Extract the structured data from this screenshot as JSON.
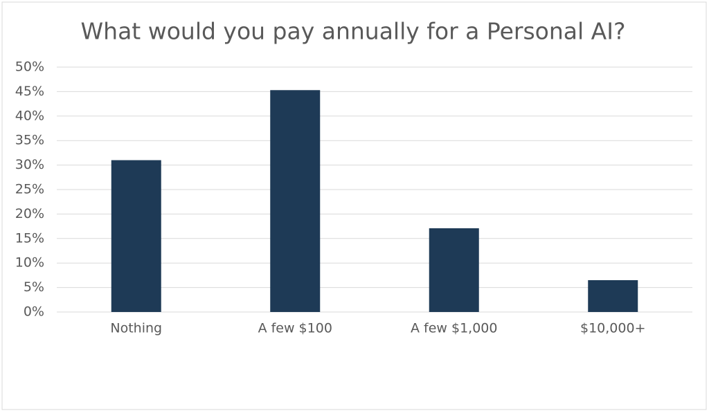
{
  "chart_data": {
    "type": "bar",
    "title": "What would you pay annually for a Personal AI?",
    "categories": [
      "Nothing",
      "A few $100",
      "A few $1,000",
      "$10,000+"
    ],
    "values": [
      31,
      45.3,
      17.1,
      6.5
    ],
    "color": "#1e3a56",
    "ylim": [
      0,
      50
    ],
    "yticks": [
      {
        "value": 0,
        "label": "0%"
      },
      {
        "value": 5,
        "label": "5%"
      },
      {
        "value": 10,
        "label": "10%"
      },
      {
        "value": 15,
        "label": "15%"
      },
      {
        "value": 20,
        "label": "20%"
      },
      {
        "value": 25,
        "label": "25%"
      },
      {
        "value": 30,
        "label": "30%"
      },
      {
        "value": 35,
        "label": "35%"
      },
      {
        "value": 40,
        "label": "40%"
      },
      {
        "value": 45,
        "label": "45%"
      },
      {
        "value": 50,
        "label": "50%"
      }
    ],
    "grid": true
  }
}
